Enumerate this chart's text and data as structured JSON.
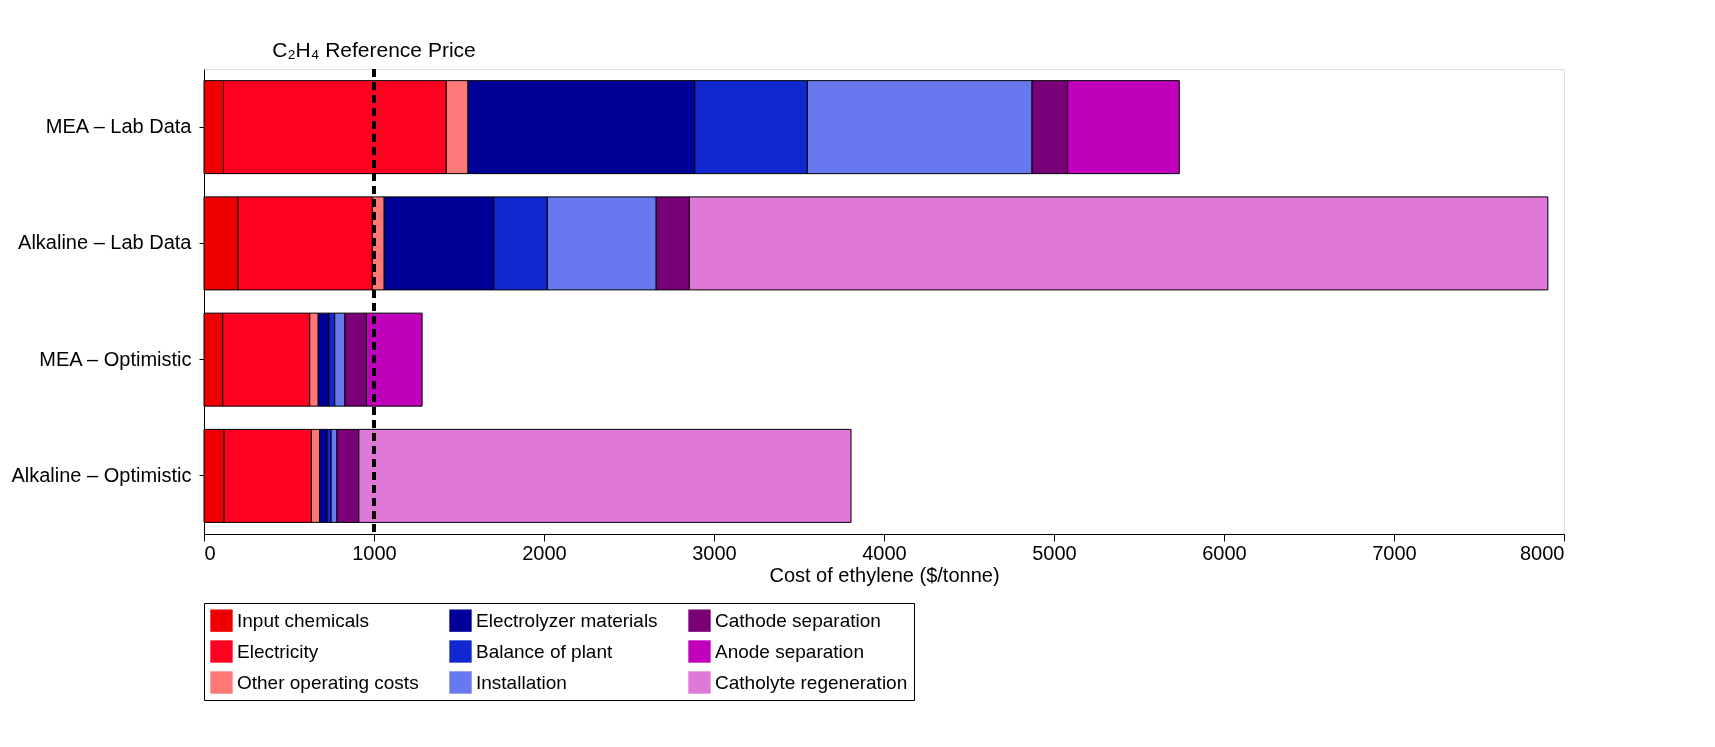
{
  "chart_data": {
    "type": "bar",
    "orientation": "horizontal",
    "stacked": true,
    "xlabel": "Cost of ethylene ($/tonne)",
    "categories": [
      "MEA – Lab Data",
      "Alkaline – Lab Data",
      "MEA – Optimistic",
      "Alkaline – Optimistic"
    ],
    "series": [
      {
        "name": "Input chemicals",
        "color": "#ee0000",
        "values": [
          115,
          200,
          110,
          118
        ]
      },
      {
        "name": "Electricity",
        "color": "#ff0020",
        "values": [
          1310,
          790,
          512,
          514
        ]
      },
      {
        "name": "Other operating costs",
        "color": "#ff7878",
        "values": [
          128,
          70,
          50,
          48
        ]
      },
      {
        "name": "Electrolyzer materials",
        "color": "#000099",
        "values": [
          1334,
          645,
          63,
          44
        ]
      },
      {
        "name": "Balance of plant",
        "color": "#1228cf",
        "values": [
          662,
          315,
          34,
          24
        ]
      },
      {
        "name": "Installation",
        "color": "#6878ee",
        "values": [
          1322,
          640,
          60,
          34
        ]
      },
      {
        "name": "Cathode separation",
        "color": "#7a0078",
        "values": [
          209,
          195,
          126,
          129
        ]
      },
      {
        "name": "Anode separation",
        "color": "#c000bb",
        "values": [
          657,
          null,
          328,
          null
        ]
      },
      {
        "name": "Catholyte regeneration",
        "color": "#df78d6",
        "values": [
          null,
          5050,
          null,
          2895
        ]
      }
    ],
    "xlim": [
      0,
      8000
    ],
    "xticks": [
      0,
      1000,
      2000,
      3000,
      4000,
      5000,
      6000,
      7000,
      8000
    ],
    "ref_lines": [
      {
        "axis": "x",
        "value": 1000,
        "label": "C₂H₄ Reference Price",
        "color": "#000000",
        "line_style": "dashed"
      }
    ],
    "grid": false,
    "legend": "bottom"
  }
}
